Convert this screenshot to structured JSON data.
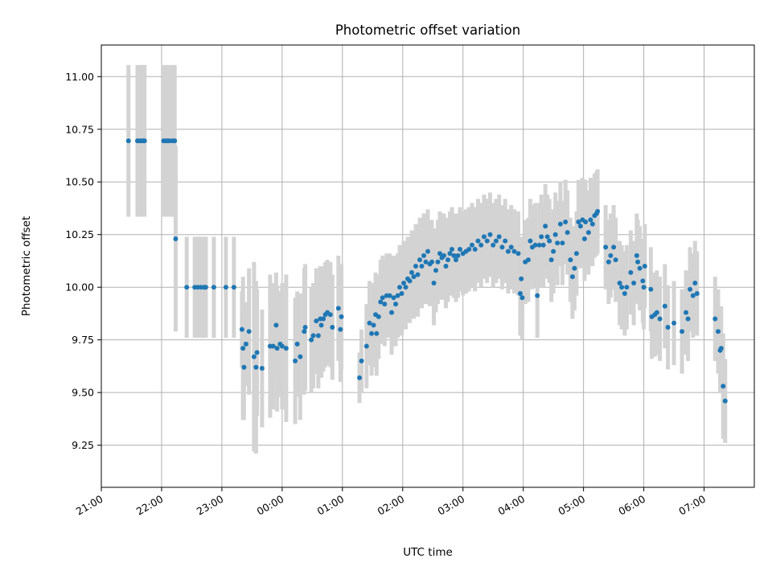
{
  "chart_data": {
    "type": "scatter",
    "title": "Photometric offset variation",
    "xlabel": "UTC time",
    "ylabel": "Photometric offset",
    "x_axis_type": "time",
    "xlim": [
      "2000-01-01T21:00",
      "2000-01-02T07:50"
    ],
    "ylim": [
      9.05,
      11.15
    ],
    "x_ticks": [
      "21:00",
      "22:00",
      "23:00",
      "00:00",
      "01:00",
      "02:00",
      "03:00",
      "04:00",
      "05:00",
      "06:00",
      "07:00"
    ],
    "y_ticks": [
      "9.25",
      "9.50",
      "9.75",
      "10.00",
      "10.25",
      "10.50",
      "10.75",
      "11.00"
    ],
    "grid": true,
    "legend": "none",
    "colors": {
      "points": "#1f77b4",
      "error_bars": "#d3d3d3",
      "grid": "#b0b0b0"
    },
    "series": [
      {
        "marker": "dot",
        "error_bars": "vertical",
        "points": [
          [
            "21:27",
            10.695,
            0.36
          ],
          [
            "21:36",
            10.695,
            0.36
          ],
          [
            "21:38",
            10.695,
            0.36
          ],
          [
            "21:40",
            10.695,
            0.36
          ],
          [
            "21:42",
            10.695,
            0.36
          ],
          [
            "21:43",
            10.695,
            0.36
          ],
          [
            "22:02",
            10.695,
            0.36
          ],
          [
            "22:04",
            10.695,
            0.36
          ],
          [
            "22:06",
            10.695,
            0.36
          ],
          [
            "22:08",
            10.695,
            0.36
          ],
          [
            "22:11",
            10.695,
            0.36
          ],
          [
            "22:13",
            10.695,
            0.36
          ],
          [
            "22:14",
            10.23,
            0.44
          ],
          [
            "22:25",
            10.0,
            0.24
          ],
          [
            "22:33",
            10.0,
            0.24
          ],
          [
            "22:36",
            10.0,
            0.24
          ],
          [
            "22:39",
            10.0,
            0.24
          ],
          [
            "22:42",
            10.0,
            0.24
          ],
          [
            "22:44",
            10.0,
            0.24
          ],
          [
            "22:52",
            10.0,
            0.24
          ],
          [
            "23:04",
            10.0,
            0.24
          ],
          [
            "23:12",
            10.0,
            0.24
          ],
          [
            "23:20",
            9.8,
            0.18
          ],
          [
            "23:21",
            9.71,
            0.34
          ],
          [
            "23:22",
            9.62,
            0.25
          ],
          [
            "23:24",
            9.73,
            0.2
          ],
          [
            "23:27",
            9.79,
            0.3
          ],
          [
            "23:32",
            9.67,
            0.45
          ],
          [
            "23:34",
            9.62,
            0.41
          ],
          [
            "23:35",
            9.69,
            0.3
          ],
          [
            "23:40",
            9.615,
            0.28
          ],
          [
            "23:48",
            9.72,
            0.34
          ],
          [
            "23:51",
            9.72,
            0.3
          ],
          [
            "23:54",
            9.82,
            0.25
          ],
          [
            "23:55",
            9.71,
            0.3
          ],
          [
            "23:58",
            9.73,
            0.25
          ],
          [
            "00:00",
            9.72,
            0.3
          ],
          [
            "00:04",
            9.71,
            0.35
          ],
          [
            "00:13",
            9.65,
            0.3
          ],
          [
            "00:15",
            9.73,
            0.25
          ],
          [
            "00:18",
            9.67,
            0.3
          ],
          [
            "00:22",
            9.79,
            0.3
          ],
          [
            "00:23",
            9.81,
            0.3
          ],
          [
            "00:29",
            9.75,
            0.25
          ],
          [
            "00:31",
            9.77,
            0.25
          ],
          [
            "00:34",
            9.84,
            0.25
          ],
          [
            "00:36",
            9.77,
            0.25
          ],
          [
            "00:38",
            9.85,
            0.25
          ],
          [
            "00:39",
            9.82,
            0.25
          ],
          [
            "00:41",
            9.85,
            0.25
          ],
          [
            "00:43",
            9.87,
            0.25
          ],
          [
            "00:45",
            9.88,
            0.25
          ],
          [
            "00:48",
            9.87,
            0.25
          ],
          [
            "00:50",
            9.81,
            0.25
          ],
          [
            "00:56",
            9.9,
            0.25
          ],
          [
            "00:58",
            9.8,
            0.25
          ],
          [
            "00:59",
            9.86,
            0.25
          ],
          [
            "01:17",
            9.57,
            0.12
          ],
          [
            "01:19",
            9.65,
            0.15
          ],
          [
            "01:24",
            9.72,
            0.2
          ],
          [
            "01:27",
            9.83,
            0.2
          ],
          [
            "01:29",
            9.78,
            0.2
          ],
          [
            "01:31",
            9.82,
            0.2
          ],
          [
            "01:33",
            9.87,
            0.2
          ],
          [
            "01:34",
            9.78,
            0.2
          ],
          [
            "01:36",
            9.86,
            0.2
          ],
          [
            "01:38",
            9.93,
            0.2
          ],
          [
            "01:40",
            9.95,
            0.2
          ],
          [
            "01:42",
            9.92,
            0.2
          ],
          [
            "01:44",
            9.96,
            0.2
          ],
          [
            "01:47",
            9.96,
            0.2
          ],
          [
            "01:49",
            9.88,
            0.2
          ],
          [
            "01:51",
            9.95,
            0.2
          ],
          [
            "01:53",
            9.92,
            0.2
          ],
          [
            "01:55",
            9.96,
            0.2
          ],
          [
            "01:57",
            10.0,
            0.2
          ],
          [
            "01:59",
            9.97,
            0.2
          ],
          [
            "02:01",
            10.02,
            0.2
          ],
          [
            "02:03",
            10.0,
            0.2
          ],
          [
            "02:05",
            10.04,
            0.2
          ],
          [
            "02:07",
            10.03,
            0.2
          ],
          [
            "02:09",
            10.07,
            0.2
          ],
          [
            "02:11",
            10.05,
            0.2
          ],
          [
            "02:13",
            10.1,
            0.2
          ],
          [
            "02:15",
            10.06,
            0.2
          ],
          [
            "02:17",
            10.13,
            0.2
          ],
          [
            "02:19",
            10.1,
            0.2
          ],
          [
            "02:21",
            10.15,
            0.2
          ],
          [
            "02:23",
            10.12,
            0.2
          ],
          [
            "02:25",
            10.17,
            0.2
          ],
          [
            "02:27",
            10.11,
            0.2
          ],
          [
            "02:29",
            10.12,
            0.2
          ],
          [
            "02:31",
            10.02,
            0.2
          ],
          [
            "02:33",
            10.08,
            0.2
          ],
          [
            "02:35",
            10.12,
            0.2
          ],
          [
            "02:37",
            10.16,
            0.2
          ],
          [
            "02:39",
            10.14,
            0.2
          ],
          [
            "02:41",
            10.15,
            0.2
          ],
          [
            "02:43",
            10.1,
            0.2
          ],
          [
            "02:45",
            10.13,
            0.2
          ],
          [
            "02:47",
            10.16,
            0.2
          ],
          [
            "02:49",
            10.18,
            0.2
          ],
          [
            "02:51",
            10.15,
            0.2
          ],
          [
            "02:53",
            10.13,
            0.2
          ],
          [
            "02:55",
            10.15,
            0.2
          ],
          [
            "02:57",
            10.18,
            0.2
          ],
          [
            "03:00",
            10.16,
            0.2
          ],
          [
            "03:03",
            10.17,
            0.2
          ],
          [
            "03:06",
            10.18,
            0.2
          ],
          [
            "03:09",
            10.2,
            0.2
          ],
          [
            "03:12",
            10.18,
            0.2
          ],
          [
            "03:15",
            10.22,
            0.2
          ],
          [
            "03:18",
            10.2,
            0.2
          ],
          [
            "03:21",
            10.24,
            0.2
          ],
          [
            "03:24",
            10.22,
            0.2
          ],
          [
            "03:27",
            10.25,
            0.2
          ],
          [
            "03:30",
            10.2,
            0.2
          ],
          [
            "03:33",
            10.22,
            0.2
          ],
          [
            "03:36",
            10.24,
            0.2
          ],
          [
            "03:39",
            10.19,
            0.2
          ],
          [
            "03:42",
            10.22,
            0.2
          ],
          [
            "03:45",
            10.17,
            0.2
          ],
          [
            "03:48",
            10.19,
            0.2
          ],
          [
            "03:51",
            10.17,
            0.2
          ],
          [
            "03:55",
            10.16,
            0.2
          ],
          [
            "03:57",
            9.97,
            0.2
          ],
          [
            "03:58",
            10.04,
            0.2
          ],
          [
            "03:59",
            9.95,
            0.2
          ],
          [
            "04:02",
            10.12,
            0.2
          ],
          [
            "04:05",
            10.13,
            0.2
          ],
          [
            "04:07",
            10.22,
            0.2
          ],
          [
            "04:09",
            10.19,
            0.2
          ],
          [
            "04:12",
            10.2,
            0.2
          ],
          [
            "04:14",
            9.96,
            0.2
          ],
          [
            "04:16",
            10.2,
            0.2
          ],
          [
            "04:18",
            10.24,
            0.2
          ],
          [
            "04:20",
            10.2,
            0.2
          ],
          [
            "04:22",
            10.29,
            0.2
          ],
          [
            "04:24",
            10.24,
            0.2
          ],
          [
            "04:26",
            10.22,
            0.2
          ],
          [
            "04:28",
            10.13,
            0.2
          ],
          [
            "04:30",
            10.17,
            0.2
          ],
          [
            "04:32",
            10.25,
            0.2
          ],
          [
            "04:34",
            10.21,
            0.2
          ],
          [
            "04:37",
            10.3,
            0.2
          ],
          [
            "04:39",
            10.21,
            0.2
          ],
          [
            "04:42",
            10.31,
            0.2
          ],
          [
            "04:44",
            10.26,
            0.2
          ],
          [
            "04:47",
            10.13,
            0.2
          ],
          [
            "04:49",
            10.05,
            0.2
          ],
          [
            "04:51",
            10.09,
            0.2
          ],
          [
            "04:53",
            10.16,
            0.2
          ],
          [
            "04:55",
            10.31,
            0.2
          ],
          [
            "04:57",
            10.29,
            0.2
          ],
          [
            "04:59",
            10.32,
            0.2
          ],
          [
            "05:01",
            10.23,
            0.2
          ],
          [
            "05:02",
            10.31,
            0.2
          ],
          [
            "05:05",
            10.26,
            0.2
          ],
          [
            "05:07",
            10.32,
            0.2
          ],
          [
            "05:09",
            10.3,
            0.2
          ],
          [
            "05:11",
            10.34,
            0.2
          ],
          [
            "05:13",
            10.35,
            0.2
          ],
          [
            "05:14",
            10.36,
            0.2
          ],
          [
            "05:22",
            10.19,
            0.2
          ],
          [
            "05:25",
            10.12,
            0.2
          ],
          [
            "05:27",
            10.15,
            0.2
          ],
          [
            "05:30",
            10.19,
            0.2
          ],
          [
            "05:32",
            10.13,
            0.2
          ],
          [
            "05:36",
            10.02,
            0.2
          ],
          [
            "05:38",
            10.0,
            0.2
          ],
          [
            "05:41",
            9.97,
            0.2
          ],
          [
            "05:43",
            10.0,
            0.2
          ],
          [
            "05:47",
            10.07,
            0.2
          ],
          [
            "05:50",
            10.02,
            0.2
          ],
          [
            "05:53",
            10.15,
            0.2
          ],
          [
            "05:54",
            10.12,
            0.2
          ],
          [
            "05:56",
            10.09,
            0.2
          ],
          [
            "05:59",
            10.03,
            0.2
          ],
          [
            "06:00",
            10.0,
            0.2
          ],
          [
            "06:01",
            10.1,
            0.2
          ],
          [
            "06:07",
            9.99,
            0.2
          ],
          [
            "06:08",
            9.86,
            0.2
          ],
          [
            "06:11",
            9.87,
            0.2
          ],
          [
            "06:13",
            9.88,
            0.2
          ],
          [
            "06:16",
            9.85,
            0.2
          ],
          [
            "06:21",
            9.91,
            0.2
          ],
          [
            "06:24",
            9.81,
            0.2
          ],
          [
            "06:30",
            9.83,
            0.2
          ],
          [
            "06:38",
            9.79,
            0.2
          ],
          [
            "06:42",
            9.88,
            0.2
          ],
          [
            "06:44",
            9.85,
            0.2
          ],
          [
            "06:46",
            9.99,
            0.2
          ],
          [
            "06:49",
            9.96,
            0.2
          ],
          [
            "06:51",
            10.02,
            0.2
          ],
          [
            "06:53",
            9.97,
            0.2
          ],
          [
            "07:11",
            9.85,
            0.2
          ],
          [
            "07:14",
            9.79,
            0.2
          ],
          [
            "07:16",
            9.7,
            0.2
          ],
          [
            "07:17",
            9.71,
            0.2
          ],
          [
            "07:19",
            9.53,
            0.25
          ],
          [
            "07:21",
            9.46,
            0.2
          ]
        ]
      }
    ]
  }
}
